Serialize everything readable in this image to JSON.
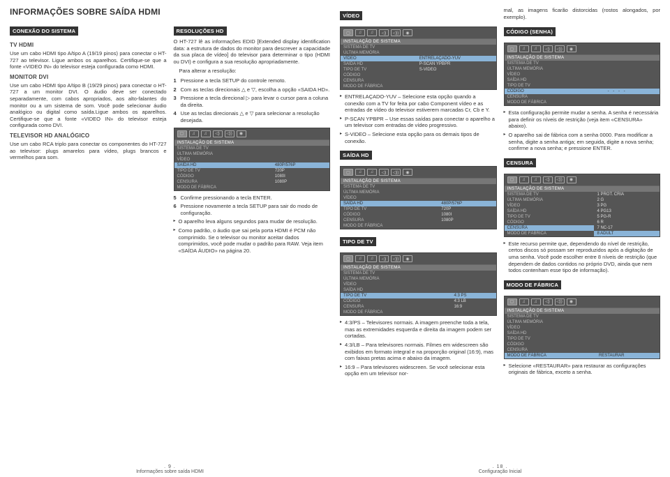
{
  "page9": {
    "title": "INFORMAÇÕES SOBRE SAÍDA HDMI",
    "footer_page": ". 9 .",
    "footer_text": "Informações sobre saída HDMI",
    "col1": {
      "hdr1": "CONEXÃO DO SISTEMA",
      "sub1": "TV HDMI",
      "p1": "Use um cabo HDMI tipo A/tipo A (19/19 pinos) para conectar o HT-727 ao televisor. Ligue ambos os aparelhos. Certifique-se que a fonte «VIDEO IN» do televisor esteja configurada como HDMI.",
      "sub2": "MONITOR DVI",
      "p2": "Use um cabo HDMI tipo A/tipo B (19/29 pinos) para conectar o HT-727 a um monitor DVI. O áudio deve ser conectado separadamente, com cabos apropriados, aos alto-falantes do monitor ou a um sistema de som. Você pode selecionar áudio analógico ou digital como saída.Ligue ambos os aparelhos. Certifique-se que a fonte «VIDEO IN» do televisor esteja configurada como DVI.",
      "sub3": "TELEVISOR HD ANALÓGICO",
      "p3": "Use um cabo RCA triplo para conectar os componentes do HT-727 ao televisor: plugs amarelos para vídeo, plugs brancos e vermelhos para som."
    },
    "col2": {
      "hdr1": "RESOLUÇÕES HD",
      "p1": "O HT-727 lê as informações EDID [Extended display identification data: a estrutura de dados do monitor para descrever a capacidade da sua placa de vídeo] do televisor para determinar o tipo (HDMI ou DVI) e configura a sua resolução apropriadamente.",
      "p2": "Para alterar a resolução:",
      "n1": "Pressione a tecla SETUP do controle remoto.",
      "n2": "Com as teclas direcionais △ e ▽, escolha a opção «SAIDA HD».",
      "n3": "Pressione a tecla direcional ▷ para levar o cursor para a coluna da direita.",
      "n4": "Use as teclas direcionais △ e ▽ para selecionar a resolução desejada.",
      "menu_title": "INSTALAÇÃO DE SISTEMA",
      "m": {
        "r1": [
          "SISTEMA DE TV",
          ""
        ],
        "r2": [
          "ÚLTIMA MEMÓRIA",
          ""
        ],
        "r3": [
          "VÍDEO",
          ""
        ],
        "r4": [
          "SAÍDA HD",
          "480P/576P"
        ],
        "r5": [
          "TIPO DE TV",
          "720P"
        ],
        "r6": [
          "CÓDIGO",
          "1080I"
        ],
        "r7": [
          "CENSURA",
          "1080P"
        ],
        "r8": [
          "MODO DE FÁBRICA",
          ""
        ]
      },
      "n5": "Confirme pressionando a tecla ENTER.",
      "n6": "Pressione novamente a tecla SETUP para sair do modo de configuração.",
      "b1": "O aparelho leva alguns segundos para mudar de resolução.",
      "b2": "Como padrão, o áudio que sai pela porta HDMI é PCM não comprimido. Se o televisor ou monitor aceitar dados comprimidos, você pode mudar o padrão para RAW. Veja item «SAÍDA ÁUDIO» na página 20."
    }
  },
  "page18": {
    "footer_page": ". 18 .",
    "footer_text": "Configuração Inicial",
    "col1": {
      "hdr1": "VÍDEO",
      "mt": "INSTALAÇÃO DE SISTEMA",
      "m1": {
        "r1": [
          "SISTEMA DE TV",
          ""
        ],
        "r2": [
          "ÚLTIMA MEMÓRIA",
          ""
        ],
        "r3": [
          "VÍDEO",
          "ENTRELAÇADO-YUV"
        ],
        "r4": [
          "SAÍDA HD",
          "P-SCAN YPBPR"
        ],
        "r5": [
          "TIPO DE TV",
          "S-VIDEO"
        ],
        "r6": [
          "CÓDIGO",
          ""
        ],
        "r7": [
          "CENSURA",
          ""
        ],
        "r8": [
          "MODO DE FÁBRICA",
          ""
        ]
      },
      "b1": "ENTRELAÇADO-YUV – Selecione esta opção quando a conexão com a TV for feita por cabo Component vídeo e as entradas de vídeo do televisor estiverem marcadas Cr, Cb e Y.",
      "b2": "P-SCAN YPBPR – Use essas saídas para conectar o aparelho a um televisor com entradas de vídeo progressivo.",
      "b3": "S-VIDEO – Selecione esta opção para os demais tipos de conexão.",
      "hdr2": "SAÍDA HD",
      "m2": {
        "r1": [
          "SISTEMA DE TV",
          ""
        ],
        "r2": [
          "ÚLTIMA MEMÓRIA",
          ""
        ],
        "r3": [
          "VÍDEO",
          ""
        ],
        "r4": [
          "SAÍDA HD",
          "480P/576P"
        ],
        "r5": [
          "TIPO DE TV",
          "720P"
        ],
        "r6": [
          "CÓDIGO",
          "1080I"
        ],
        "r7": [
          "CENSURA",
          "1080P"
        ],
        "r8": [
          "MODO DE FÁBRICA",
          ""
        ]
      },
      "hdr3": "TIPO DE TV",
      "m3": {
        "r1": [
          "SISTEMA DE TV",
          ""
        ],
        "r2": [
          "ÚLTIMA MEMÓRIA",
          ""
        ],
        "r3": [
          "VÍDEO",
          ""
        ],
        "r4": [
          "SAÍDA HD",
          ""
        ],
        "r5": [
          "TIPO DE TV",
          "4:3 PS"
        ],
        "r6": [
          "CÓDIGO",
          "4:3 LB"
        ],
        "r7": [
          "CENSURA",
          "16:9"
        ],
        "r8": [
          "MODO DE FÁBRICA",
          ""
        ]
      },
      "b4": "4:3/PS – Televisores normais. A imagem preenche toda a tela, mas as extremidades esquerda e direita da imagem podem ser cortadas.",
      "b5": "4:3/LB – Para televisores normais. Filmes em widescreen são exibidos em formato integral e na proporção original (16:9), mas com faixas pretas acima e abaixo da imagem.",
      "b6": "16:9 – Para televisores widescreen. Se você selecionar esta opção em um televisor nor-"
    },
    "col2": {
      "p0": "mal, as imagens ficarão distorcidas (rostos alongados, por exemplo).",
      "hdr1": "CÓDIGO (SENHA)",
      "mt": "INSTALAÇÃO DE SISTEMA",
      "m1": {
        "r1": [
          "SISTEMA DE TV",
          ""
        ],
        "r2": [
          "ÚLTIMA MEMÓRIA",
          ""
        ],
        "r3": [
          "VÍDEO",
          ""
        ],
        "r4": [
          "SAÍDA HD",
          ""
        ],
        "r5": [
          "TIPO DE TV",
          ""
        ],
        "r6": [
          "CÓDIGO",
          "- - - -"
        ],
        "r7": [
          "CENSURA",
          ""
        ],
        "r8": [
          "MODO DE FÁBRICA",
          ""
        ]
      },
      "b1": "Esta configuração permite mudar a senha. A senha é necessária para definir os níveis de restrição (veja item «CENSURA» abaixo).",
      "b2": "O aparelho sai de fábrica com a senha 0000. Para modificar a senha, digite a senha antiga; em seguida, digite a nova senha; confirme a nova senha; e pressione ENTER.",
      "hdr2": "CENSURA",
      "m2": {
        "r1": [
          "SISTEMA DE TV",
          "1 PROT. CRIA"
        ],
        "r2": [
          "ÚLTIMA MEMÓRIA",
          "2 G"
        ],
        "r3": [
          "VÍDEO",
          "3 PG"
        ],
        "r4": [
          "SAÍDA HD",
          "4 PG13"
        ],
        "r5": [
          "TIPO DE TV",
          "5 PG-R"
        ],
        "r6": [
          "CÓDIGO",
          "6 R"
        ],
        "r7": [
          "CENSURA",
          "7 NC-17"
        ],
        "r8": [
          "MODO DE FÁBRICA",
          "8 ADULT"
        ]
      },
      "b3": "Este recurso permite que, dependendo do nível de restrição, certos discos só possam ser reproduzidos após a digitação de uma senha. Você pode escolher entre 8 níveis de restrição (que dependem de dados contidos no próprio DVD, ainda que nem todos contenham esse tipo de informação).",
      "hdr3": "MODO DE FÁBRICA",
      "m3": {
        "r1": [
          "SISTEMA DE TV",
          ""
        ],
        "r2": [
          "ÚLTIMA MEMÓRIA",
          ""
        ],
        "r3": [
          "VÍDEO",
          ""
        ],
        "r4": [
          "SAÍDA HD",
          ""
        ],
        "r5": [
          "TIPO DE TV",
          ""
        ],
        "r6": [
          "CÓDIGO",
          ""
        ],
        "r7": [
          "CENSURA",
          ""
        ],
        "r8": [
          "MODO DE FÁBRICA",
          "RESTAURAR"
        ]
      },
      "b4": "Selecione «RESTAURAR» para restaurar as configurações originais de fábrica, exceto a senha."
    }
  }
}
